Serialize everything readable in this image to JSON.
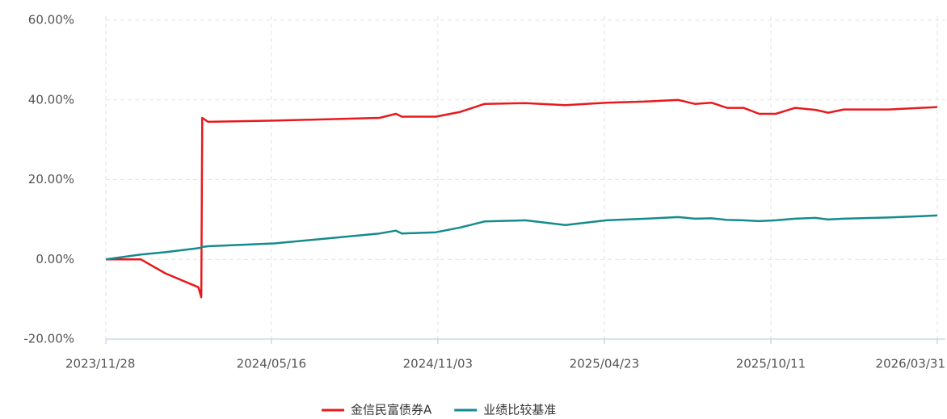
{
  "chart_data": {
    "type": "line",
    "x": [
      "2023/11/28",
      "2024/01/03",
      "2024/01/28",
      "2024/03/02",
      "2024/03/05",
      "2024/03/06",
      "2024/03/12",
      "2024/05/19",
      "2024/09/04",
      "2024/09/21",
      "2024/09/27",
      "2024/11/01",
      "2024/11/26",
      "2024/12/21",
      "2025/02/01",
      "2025/03/14",
      "2025/04/25",
      "2025/06/05",
      "2025/07/08",
      "2025/07/25",
      "2025/08/11",
      "2025/08/27",
      "2025/09/13",
      "2025/09/29",
      "2025/10/16",
      "2025/11/05",
      "2025/11/26",
      "2025/12/09",
      "2025/12/25",
      "2026/02/09",
      "2026/03/31"
    ],
    "series": [
      {
        "name": "金信民富债券A",
        "color": "#e8191c",
        "values": [
          0,
          0,
          -3.5,
          -7,
          -9.5,
          35.5,
          34.5,
          34.8,
          35.5,
          36.5,
          35.8,
          35.8,
          37,
          39,
          39.2,
          38.7,
          39.3,
          39.6,
          40,
          39,
          39.3,
          38,
          38,
          36.5,
          36.5,
          38,
          37.5,
          36.8,
          37.6,
          37.6,
          38.2
        ]
      },
      {
        "name": "业绩比较基准",
        "color": "#168a8c",
        "values": [
          0,
          1.2,
          1.8,
          2.8,
          3.0,
          3.1,
          3.3,
          4.0,
          6.5,
          7.2,
          6.5,
          6.8,
          8.0,
          9.5,
          9.8,
          8.6,
          9.8,
          10.2,
          10.6,
          10.2,
          10.3,
          9.9,
          9.8,
          9.6,
          9.8,
          10.2,
          10.4,
          10.0,
          10.2,
          10.5,
          11.0
        ]
      }
    ],
    "xlim": [
      "2023/11/28",
      "2026/03/31"
    ],
    "xticks": [
      "2023/11/28",
      "2024/05/16",
      "2024/11/03",
      "2025/04/23",
      "2025/10/11",
      "2026/03/31"
    ],
    "ylim": [
      -20,
      60
    ],
    "yticks": [
      {
        "value": -20,
        "label": "-20.00%"
      },
      {
        "value": 0,
        "label": "0.00%"
      },
      {
        "value": 20,
        "label": "20.00%"
      },
      {
        "value": 40,
        "label": "40.00%"
      },
      {
        "value": 60,
        "label": "60.00%"
      }
    ],
    "grid": true,
    "legend": "bottom"
  }
}
